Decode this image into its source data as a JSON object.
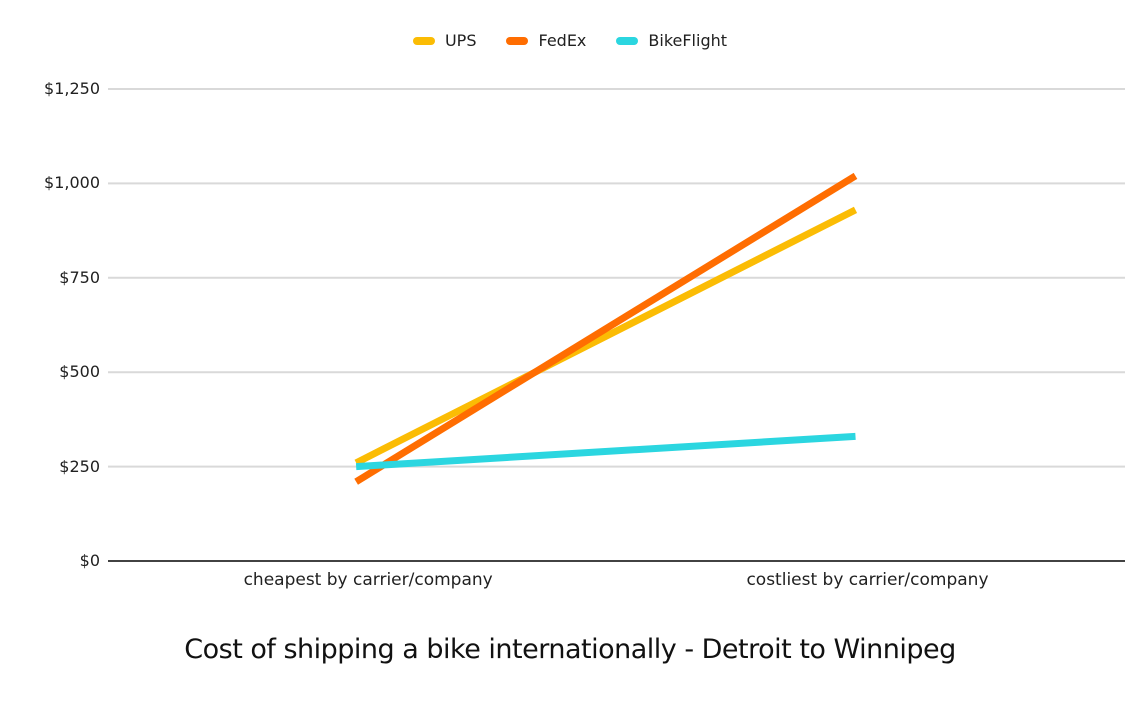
{
  "chart_data": {
    "type": "line",
    "title": "Cost of shipping a bike internationally - Detroit to Winnipeg",
    "categories": [
      "cheapest by carrier/company",
      "costliest by carrier/company"
    ],
    "series": [
      {
        "name": "UPS",
        "color": "#FBBC04",
        "values": [
          260,
          930
        ]
      },
      {
        "name": "FedEx",
        "color": "#FF6D01",
        "values": [
          210,
          1020
        ]
      },
      {
        "name": "BikeFlight",
        "color": "#2BD6E0",
        "values": [
          250,
          330
        ]
      }
    ],
    "ylim": [
      0,
      1250
    ],
    "y_ticks": [
      {
        "value": 0,
        "label": "$0"
      },
      {
        "value": 250,
        "label": "$250"
      },
      {
        "value": 500,
        "label": "$500"
      },
      {
        "value": 750,
        "label": "$750"
      },
      {
        "value": 1000,
        "label": "$1,000"
      },
      {
        "value": 1250,
        "label": "$1,250"
      }
    ],
    "xlabel": "",
    "ylabel": "",
    "legend_position": "top",
    "grid": true,
    "colors": {
      "gridline": "#d9d9d9",
      "baseline": "#424242",
      "text": "#212121"
    }
  }
}
